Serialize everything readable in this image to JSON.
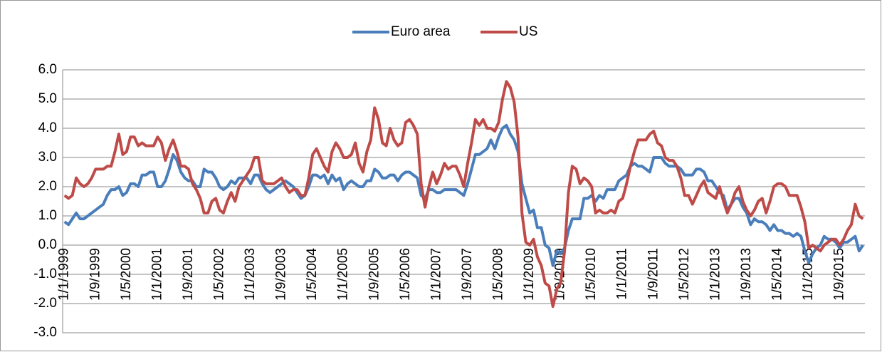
{
  "chart_data": {
    "type": "line",
    "categories": [
      "1/1/1999",
      null,
      null,
      null,
      null,
      null,
      null,
      null,
      "1/9/1999",
      null,
      null,
      null,
      null,
      null,
      null,
      null,
      "1/5/2000",
      null,
      null,
      null,
      null,
      null,
      null,
      null,
      "1/1/2001",
      null,
      null,
      null,
      null,
      null,
      null,
      null,
      "1/9/2001",
      null,
      null,
      null,
      null,
      null,
      null,
      null,
      "1/5/2002",
      null,
      null,
      null,
      null,
      null,
      null,
      null,
      "1/1/2003",
      null,
      null,
      null,
      null,
      null,
      null,
      null,
      "1/9/2003",
      null,
      null,
      null,
      null,
      null,
      null,
      null,
      "1/5/2004",
      null,
      null,
      null,
      null,
      null,
      null,
      null,
      "1/1/2005",
      null,
      null,
      null,
      null,
      null,
      null,
      null,
      "1/9/2005",
      null,
      null,
      null,
      null,
      null,
      null,
      null,
      "1/5/2006",
      null,
      null,
      null,
      null,
      null,
      null,
      null,
      "1/1/2007",
      null,
      null,
      null,
      null,
      null,
      null,
      null,
      "1/9/2007",
      null,
      null,
      null,
      null,
      null,
      null,
      null,
      "1/5/2008",
      null,
      null,
      null,
      null,
      null,
      null,
      null,
      "1/1/2009",
      null,
      null,
      null,
      null,
      null,
      null,
      null,
      "1/9/2009",
      null,
      null,
      null,
      null,
      null,
      null,
      null,
      "1/5/2010",
      null,
      null,
      null,
      null,
      null,
      null,
      null,
      "1/1/2011",
      null,
      null,
      null,
      null,
      null,
      null,
      null,
      "1/9/2011",
      null,
      null,
      null,
      null,
      null,
      null,
      null,
      "1/5/2012",
      null,
      null,
      null,
      null,
      null,
      null,
      null,
      "1/1/2013",
      null,
      null,
      null,
      null,
      null,
      null,
      null,
      "1/9/2013",
      null,
      null,
      null,
      null,
      null,
      null,
      null,
      "1/5/2014",
      null,
      null,
      null,
      null,
      null,
      null,
      null,
      "1/1/2015",
      null,
      null,
      null,
      null,
      null,
      null,
      null,
      "1/9/2015",
      null,
      null,
      null,
      null,
      null,
      null
    ],
    "series": [
      {
        "name": "Euro area",
        "color": "#4a7ebb",
        "values": [
          0.8,
          0.7,
          0.9,
          1.1,
          0.9,
          0.9,
          1.0,
          1.1,
          1.2,
          1.3,
          1.4,
          1.7,
          1.9,
          1.9,
          2.0,
          1.7,
          1.8,
          2.1,
          2.1,
          2.0,
          2.4,
          2.4,
          2.5,
          2.5,
          2.0,
          2.0,
          2.2,
          2.6,
          3.1,
          2.9,
          2.5,
          2.3,
          2.2,
          2.2,
          2.0,
          2.0,
          2.6,
          2.5,
          2.5,
          2.3,
          2.0,
          1.9,
          2.0,
          2.2,
          2.1,
          2.3,
          2.3,
          2.3,
          2.1,
          2.4,
          2.4,
          2.1,
          1.9,
          1.8,
          1.9,
          2.0,
          2.1,
          2.2,
          2.1,
          2.0,
          1.8,
          1.6,
          1.7,
          2.0,
          2.4,
          2.4,
          2.3,
          2.4,
          2.1,
          2.4,
          2.2,
          2.3,
          1.9,
          2.1,
          2.2,
          2.1,
          2.0,
          2.0,
          2.2,
          2.2,
          2.6,
          2.5,
          2.3,
          2.3,
          2.4,
          2.4,
          2.2,
          2.4,
          2.5,
          2.5,
          2.4,
          2.3,
          1.7,
          1.6,
          1.9,
          1.9,
          1.8,
          1.8,
          1.9,
          1.9,
          1.9,
          1.9,
          1.8,
          1.7,
          2.1,
          2.6,
          3.1,
          3.1,
          3.2,
          3.3,
          3.6,
          3.3,
          3.7,
          4.0,
          4.1,
          3.8,
          3.6,
          3.2,
          2.1,
          1.6,
          1.1,
          1.2,
          0.6,
          0.6,
          0.0,
          -0.1,
          -0.7,
          -0.2,
          -0.3,
          -0.1,
          0.5,
          0.9,
          0.9,
          0.9,
          1.6,
          1.6,
          1.7,
          1.5,
          1.7,
          1.6,
          1.9,
          1.9,
          1.9,
          2.2,
          2.3,
          2.4,
          2.7,
          2.8,
          2.7,
          2.7,
          2.6,
          2.5,
          3.0,
          3.0,
          3.0,
          2.8,
          2.7,
          2.7,
          2.7,
          2.6,
          2.4,
          2.4,
          2.4,
          2.6,
          2.6,
          2.5,
          2.2,
          2.2,
          2.0,
          1.8,
          1.7,
          1.2,
          1.4,
          1.6,
          1.6,
          1.3,
          1.1,
          0.7,
          0.9,
          0.8,
          0.8,
          0.7,
          0.5,
          0.7,
          0.5,
          0.5,
          0.4,
          0.4,
          0.3,
          0.4,
          0.3,
          -0.2,
          -0.6,
          -0.3,
          -0.1,
          0.0,
          0.3,
          0.2,
          0.2,
          0.1,
          -0.1,
          0.1,
          0.1,
          0.2,
          0.3,
          -0.2,
          0.0
        ]
      },
      {
        "name": "US",
        "color": "#be4b48",
        "values": [
          1.7,
          1.6,
          1.7,
          2.3,
          2.1,
          2.0,
          2.1,
          2.3,
          2.6,
          2.6,
          2.6,
          2.7,
          2.7,
          3.2,
          3.8,
          3.1,
          3.2,
          3.7,
          3.7,
          3.4,
          3.5,
          3.4,
          3.4,
          3.4,
          3.7,
          3.5,
          2.9,
          3.3,
          3.6,
          3.2,
          2.7,
          2.7,
          2.6,
          2.1,
          1.9,
          1.6,
          1.1,
          1.1,
          1.5,
          1.6,
          1.2,
          1.1,
          1.5,
          1.8,
          1.5,
          2.0,
          2.2,
          2.4,
          2.6,
          3.0,
          3.0,
          2.2,
          2.1,
          2.1,
          2.1,
          2.2,
          2.3,
          2.0,
          1.8,
          1.9,
          1.9,
          1.7,
          1.7,
          2.3,
          3.1,
          3.3,
          3.0,
          2.7,
          2.5,
          3.2,
          3.5,
          3.3,
          3.0,
          3.0,
          3.1,
          3.5,
          2.8,
          2.5,
          3.2,
          3.6,
          4.7,
          4.3,
          3.5,
          3.4,
          4.0,
          3.6,
          3.4,
          3.5,
          4.2,
          4.3,
          4.1,
          3.8,
          2.1,
          1.3,
          2.0,
          2.5,
          2.1,
          2.4,
          2.8,
          2.6,
          2.7,
          2.7,
          2.4,
          2.0,
          2.8,
          3.5,
          4.3,
          4.1,
          4.3,
          4.0,
          4.0,
          3.9,
          4.2,
          5.0,
          5.6,
          5.4,
          4.9,
          3.7,
          1.1,
          0.1,
          0.0,
          0.2,
          -0.4,
          -0.7,
          -1.3,
          -1.4,
          -2.1,
          -1.5,
          -1.3,
          -0.2,
          1.8,
          2.7,
          2.6,
          2.1,
          2.3,
          2.2,
          2.0,
          1.1,
          1.2,
          1.1,
          1.1,
          1.2,
          1.1,
          1.5,
          1.6,
          2.1,
          2.7,
          3.2,
          3.6,
          3.6,
          3.6,
          3.8,
          3.9,
          3.5,
          3.4,
          3.0,
          2.9,
          2.9,
          2.7,
          2.3,
          1.7,
          1.7,
          1.4,
          1.7,
          2.0,
          2.2,
          1.8,
          1.7,
          1.6,
          2.0,
          1.5,
          1.1,
          1.4,
          1.8,
          2.0,
          1.5,
          1.2,
          1.0,
          1.2,
          1.5,
          1.6,
          1.1,
          1.5,
          2.0,
          2.1,
          2.1,
          2.0,
          1.7,
          1.7,
          1.7,
          1.3,
          0.8,
          -0.1,
          0.0,
          -0.1,
          -0.2,
          0.0,
          0.1,
          0.2,
          0.2,
          0.0,
          0.2,
          0.5,
          0.7,
          1.4,
          1.0,
          0.9
        ]
      }
    ],
    "ylim": [
      -3,
      6
    ],
    "yticks": [
      {
        "value": -3,
        "label": "-3.0"
      },
      {
        "value": -2,
        "label": "-2.0"
      },
      {
        "value": -1,
        "label": "-1.0"
      },
      {
        "value": 0,
        "label": "0.0"
      },
      {
        "value": 1,
        "label": "1.0"
      },
      {
        "value": 2,
        "label": "2.0"
      },
      {
        "value": 3,
        "label": "3.0"
      },
      {
        "value": 4,
        "label": "4.0"
      },
      {
        "value": 5,
        "label": "5.0"
      },
      {
        "value": 6,
        "label": "6.0"
      }
    ],
    "grid": true,
    "legend": "top"
  }
}
